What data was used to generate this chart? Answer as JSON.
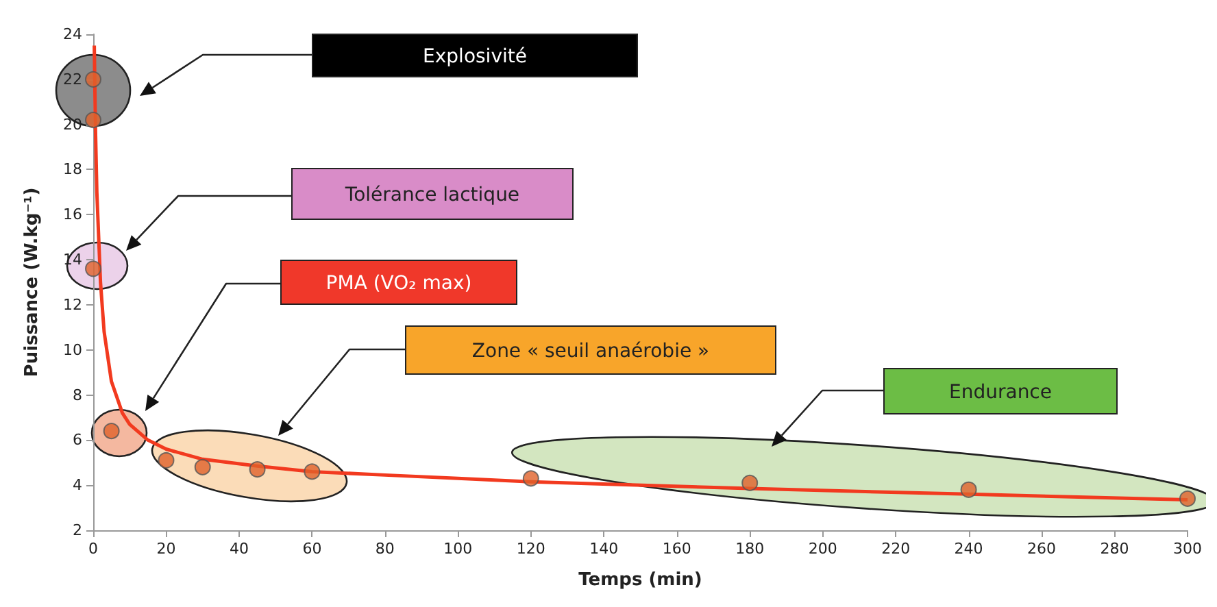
{
  "chart_data": {
    "type": "scatter",
    "xlabel": "Temps (min)",
    "ylabel": "Puissance (W.kg⁻¹)",
    "xlim": [
      0,
      300
    ],
    "xticks": [
      0,
      20,
      40,
      60,
      80,
      100,
      120,
      140,
      160,
      180,
      200,
      220,
      240,
      260,
      280,
      300
    ],
    "ylim": [
      2,
      24
    ],
    "yticks": [
      2,
      4,
      6,
      8,
      10,
      12,
      14,
      16,
      18,
      20,
      22,
      24
    ],
    "grid": false,
    "series": [
      {
        "type": "line",
        "color": "#f23a1f",
        "marker": "none",
        "x": [
          0.3,
          0.6,
          1,
          2,
          3,
          5,
          8,
          10,
          15,
          20,
          30,
          45,
          60,
          80,
          100,
          120,
          180,
          240,
          300
        ],
        "values": [
          23.5,
          20,
          17,
          13,
          10.8,
          8.6,
          7.2,
          6.7,
          6.0,
          5.6,
          5.15,
          4.85,
          4.6,
          4.45,
          4.3,
          4.15,
          3.85,
          3.6,
          3.35
        ]
      },
      {
        "color": "#e0622a",
        "marker": "circle",
        "x": [
          0,
          0,
          0,
          5,
          20,
          30,
          45,
          60,
          120,
          180,
          240,
          300
        ],
        "values": [
          22,
          20.2,
          13.6,
          6.4,
          5.1,
          4.8,
          4.7,
          4.6,
          4.3,
          4.1,
          3.8,
          3.4
        ]
      }
    ],
    "annotations": [
      "Explosivité",
      "Tolérance lactique",
      "PMA (VO₂ max)",
      "Zone « seuil anaérobie »",
      "Endurance"
    ]
  }
}
